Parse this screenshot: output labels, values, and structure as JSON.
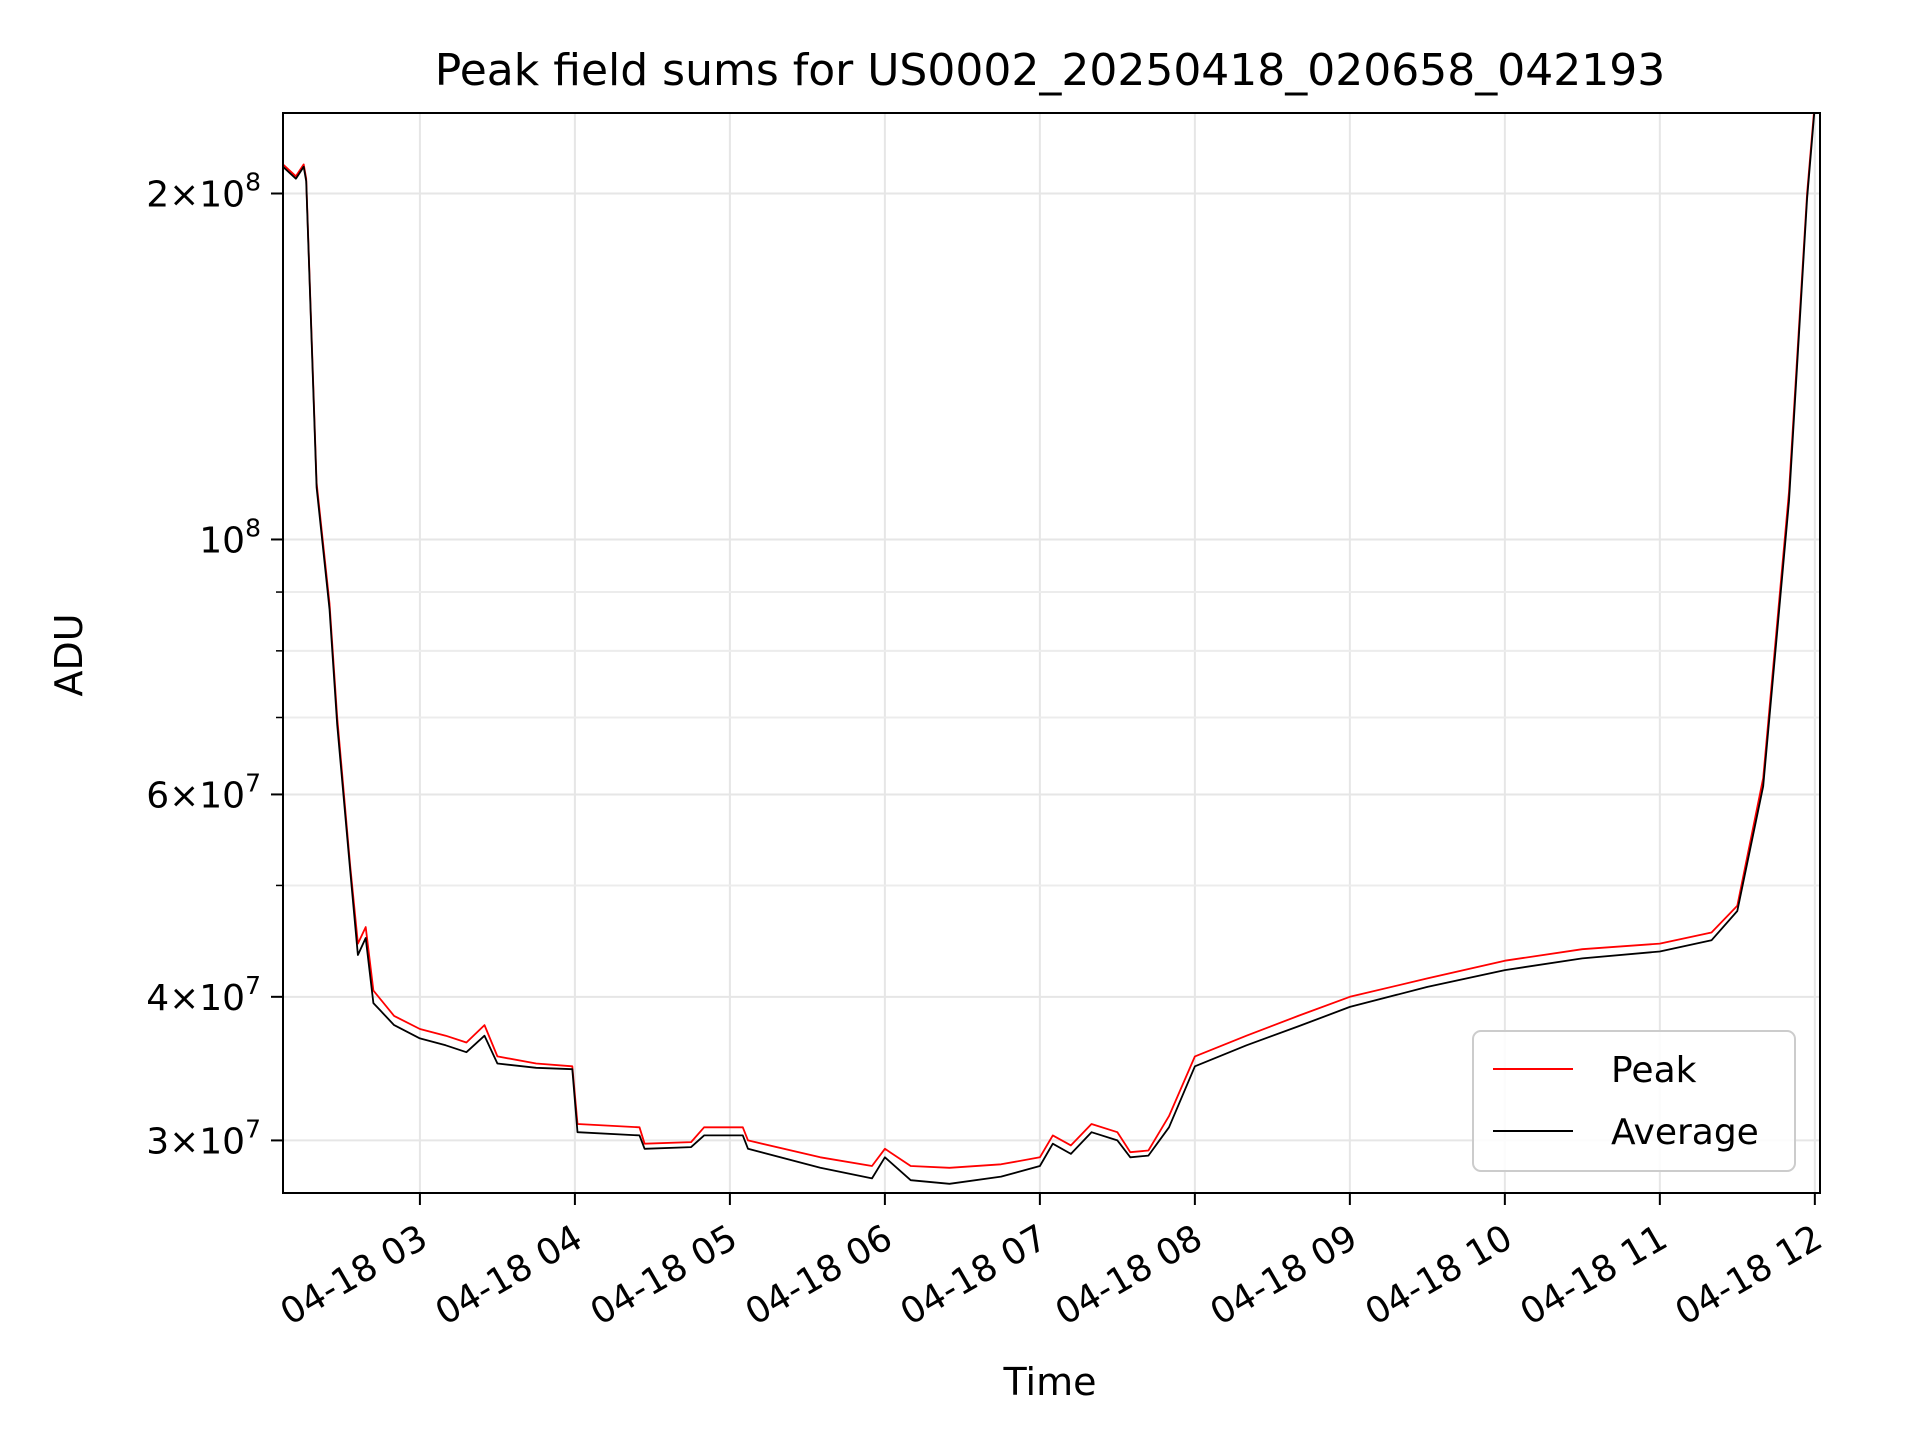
{
  "chart_data": {
    "type": "line",
    "title": "Peak field sums for US0002_20250418_020658_042193",
    "xlabel": "Time",
    "ylabel": "ADU",
    "x_scale": "time",
    "y_scale": "log",
    "xlim": [
      "04-18 02:07",
      "04-18 12:02"
    ],
    "ylim": [
      27000000,
      235000000
    ],
    "x_ticks": [
      "04-18 03",
      "04-18 04",
      "04-18 05",
      "04-18 06",
      "04-18 07",
      "04-18 08",
      "04-18 09",
      "04-18 10",
      "04-18 11",
      "04-18 12"
    ],
    "y_ticks": [
      {
        "value": 30000000,
        "mantissa": "3",
        "exponent": "7"
      },
      {
        "value": 40000000,
        "mantissa": "4",
        "exponent": "7"
      },
      {
        "value": 60000000,
        "mantissa": "6",
        "exponent": "7"
      },
      {
        "value": 100000000,
        "mantissa": "",
        "exponent": "8"
      },
      {
        "value": 200000000,
        "mantissa": "2",
        "exponent": "8"
      }
    ],
    "y_minor_ticks": [
      50000000,
      70000000,
      80000000,
      90000000
    ],
    "grid": true,
    "legend_position": "lower-right",
    "series": [
      {
        "name": "Peak",
        "color": "#ff0000",
        "points": [
          [
            "04-18 02:07",
            212000000
          ],
          [
            "04-18 02:12",
            207000000
          ],
          [
            "04-18 02:15",
            212000000
          ],
          [
            "04-18 02:16",
            206000000
          ],
          [
            "04-18 02:20",
            112000000
          ],
          [
            "04-18 02:25",
            88000000
          ],
          [
            "04-18 02:28",
            70000000
          ],
          [
            "04-18 02:33",
            52000000
          ],
          [
            "04-18 02:36",
            44500000
          ],
          [
            "04-18 02:39",
            46000000
          ],
          [
            "04-18 02:42",
            40500000
          ],
          [
            "04-18 02:50",
            38500000
          ],
          [
            "04-18 03:00",
            37500000
          ],
          [
            "04-18 03:10",
            37000000
          ],
          [
            "04-18 03:18",
            36500000
          ],
          [
            "04-18 03:25",
            37800000
          ],
          [
            "04-18 03:30",
            35500000
          ],
          [
            "04-18 03:45",
            35000000
          ],
          [
            "04-18 03:59",
            34800000
          ],
          [
            "04-18 04:01",
            31000000
          ],
          [
            "04-18 04:25",
            30800000
          ],
          [
            "04-18 04:27",
            29800000
          ],
          [
            "04-18 04:45",
            29900000
          ],
          [
            "04-18 04:50",
            30800000
          ],
          [
            "04-18 05:05",
            30800000
          ],
          [
            "04-18 05:07",
            30000000
          ],
          [
            "04-18 05:35",
            29000000
          ],
          [
            "04-18 05:55",
            28500000
          ],
          [
            "04-18 06:00",
            29500000
          ],
          [
            "04-18 06:10",
            28500000
          ],
          [
            "04-18 06:25",
            28400000
          ],
          [
            "04-18 06:45",
            28600000
          ],
          [
            "04-18 07:00",
            29000000
          ],
          [
            "04-18 07:05",
            30300000
          ],
          [
            "04-18 07:12",
            29700000
          ],
          [
            "04-18 07:20",
            31000000
          ],
          [
            "04-18 07:30",
            30500000
          ],
          [
            "04-18 07:35",
            29300000
          ],
          [
            "04-18 07:42",
            29400000
          ],
          [
            "04-18 07:50",
            31500000
          ],
          [
            "04-18 08:00",
            35500000
          ],
          [
            "04-18 08:20",
            37000000
          ],
          [
            "04-18 08:40",
            38500000
          ],
          [
            "04-18 09:00",
            40000000
          ],
          [
            "04-18 09:30",
            41500000
          ],
          [
            "04-18 10:00",
            43000000
          ],
          [
            "04-18 10:30",
            44000000
          ],
          [
            "04-18 11:00",
            44500000
          ],
          [
            "04-18 11:20",
            45500000
          ],
          [
            "04-18 11:30",
            48000000
          ],
          [
            "04-18 11:40",
            62000000
          ],
          [
            "04-18 11:50",
            110000000
          ],
          [
            "04-18 11:57",
            200000000
          ],
          [
            "04-18 12:00",
            240000000
          ]
        ]
      },
      {
        "name": "Average",
        "color": "#000000",
        "points": [
          [
            "04-18 02:07",
            211000000
          ],
          [
            "04-18 02:12",
            206000000
          ],
          [
            "04-18 02:15",
            211000000
          ],
          [
            "04-18 02:16",
            205000000
          ],
          [
            "04-18 02:20",
            111000000
          ],
          [
            "04-18 02:25",
            87000000
          ],
          [
            "04-18 02:28",
            69000000
          ],
          [
            "04-18 02:33",
            51500000
          ],
          [
            "04-18 02:36",
            43500000
          ],
          [
            "04-18 02:39",
            45000000
          ],
          [
            "04-18 02:42",
            39500000
          ],
          [
            "04-18 02:50",
            37800000
          ],
          [
            "04-18 03:00",
            36800000
          ],
          [
            "04-18 03:10",
            36300000
          ],
          [
            "04-18 03:18",
            35800000
          ],
          [
            "04-18 03:25",
            37000000
          ],
          [
            "04-18 03:30",
            35000000
          ],
          [
            "04-18 03:45",
            34700000
          ],
          [
            "04-18 03:59",
            34600000
          ],
          [
            "04-18 04:01",
            30500000
          ],
          [
            "04-18 04:25",
            30300000
          ],
          [
            "04-18 04:27",
            29500000
          ],
          [
            "04-18 04:45",
            29600000
          ],
          [
            "04-18 04:50",
            30300000
          ],
          [
            "04-18 05:05",
            30300000
          ],
          [
            "04-18 05:07",
            29500000
          ],
          [
            "04-18 05:35",
            28400000
          ],
          [
            "04-18 05:55",
            27800000
          ],
          [
            "04-18 06:00",
            29000000
          ],
          [
            "04-18 06:10",
            27700000
          ],
          [
            "04-18 06:25",
            27500000
          ],
          [
            "04-18 06:45",
            27900000
          ],
          [
            "04-18 07:00",
            28500000
          ],
          [
            "04-18 07:05",
            29800000
          ],
          [
            "04-18 07:12",
            29200000
          ],
          [
            "04-18 07:20",
            30500000
          ],
          [
            "04-18 07:30",
            30000000
          ],
          [
            "04-18 07:35",
            29000000
          ],
          [
            "04-18 07:42",
            29100000
          ],
          [
            "04-18 07:50",
            30800000
          ],
          [
            "04-18 08:00",
            34800000
          ],
          [
            "04-18 08:20",
            36300000
          ],
          [
            "04-18 08:40",
            37700000
          ],
          [
            "04-18 09:00",
            39200000
          ],
          [
            "04-18 09:30",
            40800000
          ],
          [
            "04-18 10:00",
            42200000
          ],
          [
            "04-18 10:30",
            43200000
          ],
          [
            "04-18 11:00",
            43800000
          ],
          [
            "04-18 11:20",
            44800000
          ],
          [
            "04-18 11:30",
            47500000
          ],
          [
            "04-18 11:40",
            61000000
          ],
          [
            "04-18 11:50",
            108000000
          ],
          [
            "04-18 11:57",
            198000000
          ],
          [
            "04-18 12:00",
            238000000
          ]
        ]
      }
    ]
  }
}
